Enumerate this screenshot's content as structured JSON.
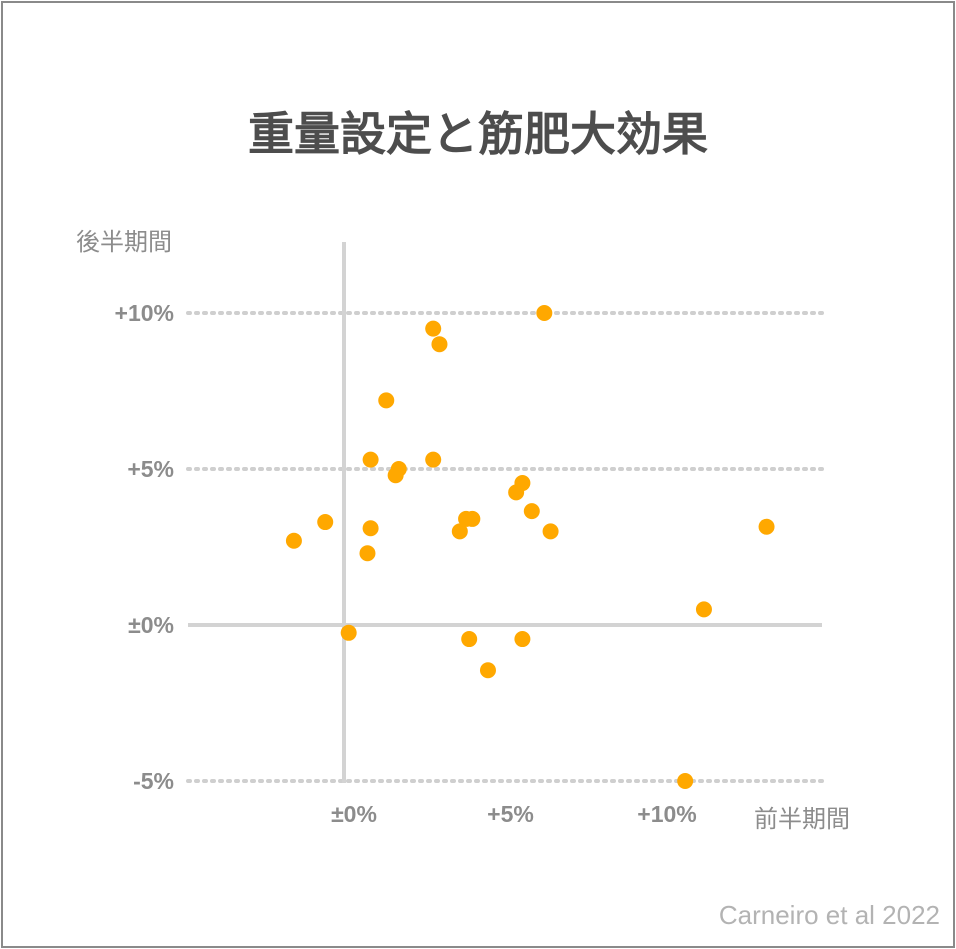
{
  "chart_data": {
    "type": "scatter",
    "title": "重量設定と筋肥大効果",
    "xlabel": "前半期間",
    "ylabel": "後半期間",
    "source": "Carneiro et al 2022",
    "xlim": [
      -5,
      15.5
    ],
    "ylim": [
      -5,
      12.5
    ],
    "x_ticks": [
      {
        "value": 0,
        "label": "±0%"
      },
      {
        "value": 5,
        "label": "+5%"
      },
      {
        "value": 10,
        "label": "+10%"
      }
    ],
    "y_ticks": [
      {
        "value": -5,
        "label": "-5%"
      },
      {
        "value": 0,
        "label": "±0%"
      },
      {
        "value": 5,
        "label": "+5%"
      },
      {
        "value": 10,
        "label": "+10%"
      }
    ],
    "grid_y_dotted": [
      -5,
      5,
      10
    ],
    "zero_lines": true,
    "marker_color": "#ffa800",
    "points": [
      {
        "x": -1.6,
        "y": 2.7
      },
      {
        "x": -0.6,
        "y": 3.3
      },
      {
        "x": 0.15,
        "y": -0.25
      },
      {
        "x": 0.75,
        "y": 2.3
      },
      {
        "x": 0.85,
        "y": 3.1
      },
      {
        "x": 0.85,
        "y": 5.3
      },
      {
        "x": 1.35,
        "y": 7.2
      },
      {
        "x": 1.65,
        "y": 4.8
      },
      {
        "x": 1.75,
        "y": 5.0
      },
      {
        "x": 2.85,
        "y": 9.5
      },
      {
        "x": 2.85,
        "y": 5.3
      },
      {
        "x": 3.05,
        "y": 9.0
      },
      {
        "x": 3.7,
        "y": 3.0
      },
      {
        "x": 3.9,
        "y": 3.4
      },
      {
        "x": 4.1,
        "y": 3.4
      },
      {
        "x": 4.0,
        "y": -0.45
      },
      {
        "x": 4.6,
        "y": -1.45
      },
      {
        "x": 5.5,
        "y": 4.25
      },
      {
        "x": 5.7,
        "y": 4.55
      },
      {
        "x": 5.7,
        "y": -0.45
      },
      {
        "x": 6.0,
        "y": 3.65
      },
      {
        "x": 6.4,
        "y": 10.0
      },
      {
        "x": 6.6,
        "y": 3.0
      },
      {
        "x": 10.9,
        "y": -5.0
      },
      {
        "x": 11.5,
        "y": 0.5
      },
      {
        "x": 13.5,
        "y": 3.15
      }
    ]
  }
}
